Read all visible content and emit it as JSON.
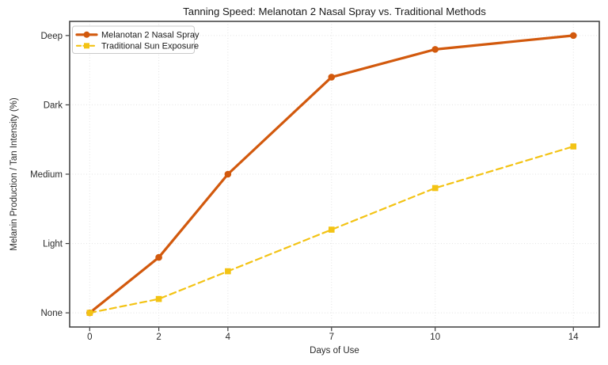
{
  "chart_data": {
    "type": "line",
    "title": "Tanning Speed: Melanotan 2 Nasal Spray vs. Traditional Methods",
    "xlabel": "Days of Use",
    "ylabel": "Melanin Production / Tan Intensity (%)",
    "x": [
      0,
      2,
      4,
      7,
      10,
      14
    ],
    "xtick_labels": [
      "0",
      "2",
      "4",
      "7",
      "10",
      "14"
    ],
    "ytick_values": [
      0,
      25,
      50,
      75,
      100
    ],
    "ytick_labels": [
      "None",
      "Light",
      "Medium",
      "Dark",
      "Deep"
    ],
    "xlim": [
      -0.58,
      14.75
    ],
    "ylim": [
      -5.1,
      105.1
    ],
    "grid": true,
    "grid_style": "dotted",
    "legend_position": "upper-left",
    "series": [
      {
        "name": "Melanotan 2 Nasal Spray",
        "values": [
          0,
          20,
          50,
          85,
          95,
          100
        ],
        "color": "#d2590d",
        "line_style": "solid",
        "line_width": 3.2,
        "marker": "circle"
      },
      {
        "name": "Traditional Sun Exposure",
        "values": [
          0,
          5,
          15,
          30,
          45,
          60
        ],
        "color": "#f3c314",
        "line_style": "dashed",
        "line_width": 2.2,
        "marker": "square"
      }
    ]
  },
  "colors": {
    "background": "#ffffff",
    "frame": "#3c3c3c",
    "grid": "#e3e3e3",
    "title_text": "#1a1a1a",
    "tick_text": "#2b2b2b",
    "legend_border": "#c9c9c9",
    "legend_bg": "#ffffff"
  }
}
